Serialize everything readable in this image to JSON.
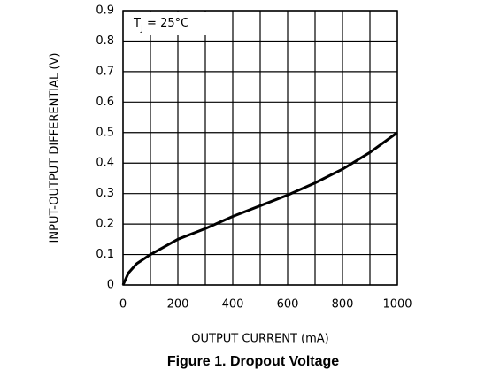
{
  "chart_data": {
    "type": "line",
    "caption": "Figure 1. Dropout Voltage",
    "annotation": [
      "T",
      "J",
      " = 25°C"
    ],
    "xlabel": "OUTPUT CURRENT (mA)",
    "ylabel": "INPUT-OUTPUT DIFFERENTIAL (V)",
    "x": [
      0,
      20,
      50,
      100,
      200,
      300,
      400,
      500,
      600,
      700,
      800,
      900,
      1000
    ],
    "series": [
      {
        "color": "#000000",
        "values": [
          0,
          0.04,
          0.07,
          0.1,
          0.15,
          0.185,
          0.225,
          0.26,
          0.295,
          0.335,
          0.38,
          0.435,
          0.5
        ]
      }
    ],
    "xlim": [
      0,
      1000
    ],
    "xticks": [
      0,
      200,
      400,
      600,
      800,
      1000
    ],
    "xgrid": [
      0,
      100,
      200,
      300,
      400,
      500,
      600,
      700,
      800,
      900,
      1000
    ],
    "ylim": [
      0,
      0.9
    ],
    "yticks": [
      0,
      0.1,
      0.2,
      0.3,
      0.4,
      0.5,
      0.6,
      0.7,
      0.8,
      0.9
    ],
    "grid": true
  }
}
